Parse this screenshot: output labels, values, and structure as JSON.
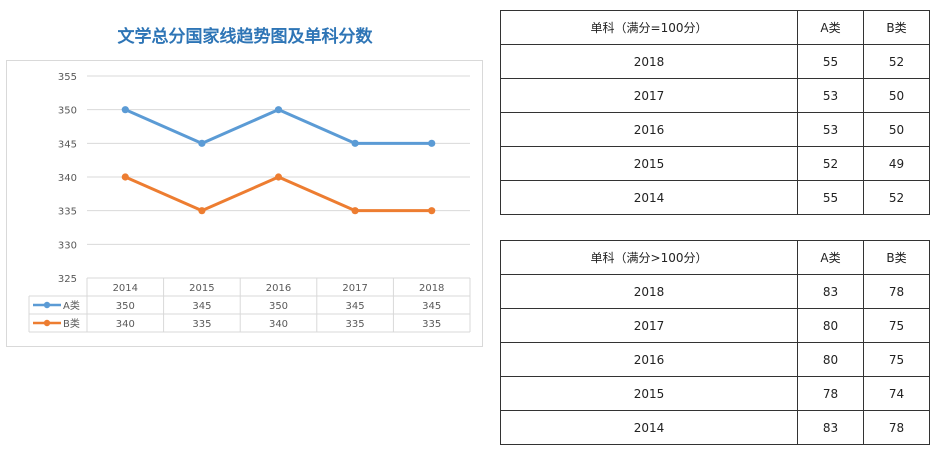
{
  "chart_data": {
    "type": "line",
    "title": "文学总分国家线趋势图及单科分数",
    "categories": [
      "2014",
      "2015",
      "2016",
      "2017",
      "2018"
    ],
    "series": [
      {
        "name": "A类",
        "values": [
          350,
          345,
          350,
          345,
          345
        ],
        "color": "#5B9BD5"
      },
      {
        "name": "B类",
        "values": [
          340,
          335,
          340,
          335,
          335
        ],
        "color": "#ED7D31"
      }
    ],
    "yticks": [
      325,
      330,
      335,
      340,
      345,
      350,
      355
    ],
    "ylim": [
      325,
      355
    ],
    "grid": true,
    "data_table": true
  },
  "table1": {
    "headers": [
      "单科（满分=100分）",
      "A类",
      "B类"
    ],
    "rows": [
      [
        "2018",
        "55",
        "52"
      ],
      [
        "2017",
        "53",
        "50"
      ],
      [
        "2016",
        "53",
        "50"
      ],
      [
        "2015",
        "52",
        "49"
      ],
      [
        "2014",
        "55",
        "52"
      ]
    ]
  },
  "table2": {
    "headers": [
      "单科（满分>100分）",
      "A类",
      "B类"
    ],
    "rows": [
      [
        "2018",
        "83",
        "78"
      ],
      [
        "2017",
        "80",
        "75"
      ],
      [
        "2016",
        "80",
        "75"
      ],
      [
        "2015",
        "78",
        "74"
      ],
      [
        "2014",
        "83",
        "78"
      ]
    ]
  }
}
